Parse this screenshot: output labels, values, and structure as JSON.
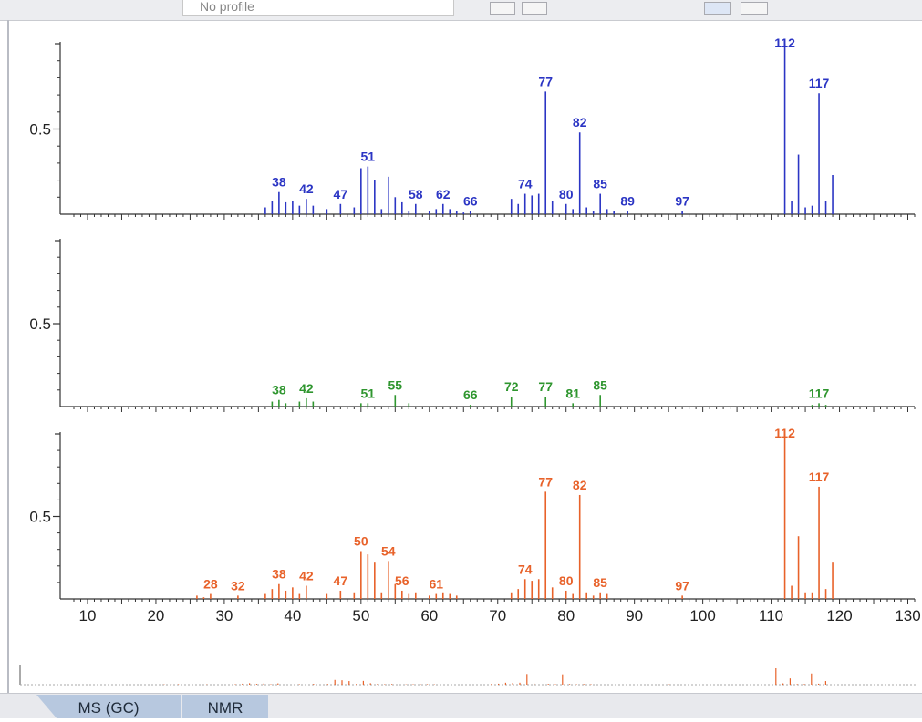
{
  "toolbar": {
    "profile_combo": "No profile"
  },
  "tabs": [
    {
      "label": "MS (GC)"
    },
    {
      "label": "NMR"
    }
  ],
  "colors": {
    "panel1": "#2b35c4",
    "panel2": "#2f962f",
    "panel3": "#e8622a",
    "axis": "#333333"
  },
  "chart_data": [
    {
      "type": "bar",
      "panel": 1,
      "color": "#2b35c4",
      "xlim": [
        6,
        131
      ],
      "ylim": [
        0,
        1
      ],
      "yticks": [
        {
          "value": 0.5,
          "label": "0.5"
        }
      ],
      "x": [
        36,
        37,
        38,
        39,
        40,
        41,
        42,
        43,
        45,
        47,
        49,
        50,
        51,
        52,
        53,
        54,
        55,
        56,
        57,
        58,
        60,
        61,
        62,
        63,
        64,
        65,
        66,
        72,
        73,
        74,
        75,
        76,
        77,
        78,
        80,
        81,
        82,
        83,
        84,
        85,
        86,
        87,
        89,
        97,
        112,
        113,
        114,
        115,
        116,
        117,
        118,
        119
      ],
      "values": [
        0.04,
        0.08,
        0.13,
        0.07,
        0.08,
        0.05,
        0.09,
        0.05,
        0.03,
        0.06,
        0.04,
        0.27,
        0.28,
        0.2,
        0.03,
        0.22,
        0.1,
        0.07,
        0.02,
        0.06,
        0.02,
        0.03,
        0.06,
        0.03,
        0.02,
        0.01,
        0.02,
        0.09,
        0.06,
        0.12,
        0.11,
        0.12,
        0.72,
        0.08,
        0.06,
        0.03,
        0.48,
        0.04,
        0.02,
        0.12,
        0.03,
        0.02,
        0.02,
        0.02,
        1.0,
        0.08,
        0.35,
        0.04,
        0.05,
        0.71,
        0.08,
        0.23
      ],
      "peak_labels": [
        {
          "x": 38,
          "text": "38"
        },
        {
          "x": 42,
          "text": "42"
        },
        {
          "x": 47,
          "text": "47"
        },
        {
          "x": 51,
          "text": "51"
        },
        {
          "x": 58,
          "text": "58"
        },
        {
          "x": 62,
          "text": "62"
        },
        {
          "x": 66,
          "text": "66"
        },
        {
          "x": 74,
          "text": "74"
        },
        {
          "x": 77,
          "text": "77"
        },
        {
          "x": 80,
          "text": "80"
        },
        {
          "x": 82,
          "text": "82"
        },
        {
          "x": 85,
          "text": "85"
        },
        {
          "x": 89,
          "text": "89"
        },
        {
          "x": 97,
          "text": "97"
        },
        {
          "x": 112,
          "text": "112"
        },
        {
          "x": 117,
          "text": "117"
        }
      ]
    },
    {
      "type": "bar",
      "panel": 2,
      "color": "#2f962f",
      "xlim": [
        6,
        131
      ],
      "ylim": [
        0,
        1
      ],
      "yticks": [
        {
          "value": 0.5,
          "label": "0.5"
        }
      ],
      "x": [
        37,
        38,
        39,
        41,
        42,
        43,
        50,
        51,
        55,
        57,
        66,
        72,
        77,
        81,
        85,
        116,
        117,
        118
      ],
      "values": [
        0.03,
        0.04,
        0.02,
        0.03,
        0.05,
        0.03,
        0.02,
        0.02,
        0.07,
        0.02,
        0.01,
        0.06,
        0.06,
        0.02,
        0.07,
        0.01,
        0.02,
        0.01
      ],
      "peak_labels": [
        {
          "x": 38,
          "text": "38"
        },
        {
          "x": 42,
          "text": "42"
        },
        {
          "x": 51,
          "text": "51"
        },
        {
          "x": 55,
          "text": "55"
        },
        {
          "x": 66,
          "text": "66"
        },
        {
          "x": 72,
          "text": "72"
        },
        {
          "x": 77,
          "text": "77"
        },
        {
          "x": 81,
          "text": "81"
        },
        {
          "x": 85,
          "text": "85"
        },
        {
          "x": 117,
          "text": "117"
        }
      ]
    },
    {
      "type": "bar",
      "panel": 3,
      "color": "#e8622a",
      "xlim": [
        6,
        131
      ],
      "ylim": [
        0,
        1
      ],
      "yticks": [
        {
          "value": 0.5,
          "label": "0.5"
        }
      ],
      "xticks": [
        10,
        20,
        30,
        40,
        50,
        60,
        70,
        80,
        90,
        100,
        110,
        120,
        130
      ],
      "x": [
        26,
        27,
        28,
        32,
        36,
        37,
        38,
        39,
        40,
        41,
        42,
        45,
        47,
        49,
        50,
        51,
        52,
        53,
        54,
        55,
        56,
        57,
        58,
        60,
        61,
        62,
        63,
        64,
        72,
        73,
        74,
        75,
        76,
        77,
        78,
        80,
        81,
        82,
        83,
        84,
        85,
        86,
        97,
        112,
        113,
        114,
        115,
        116,
        117,
        118,
        119
      ],
      "values": [
        0.02,
        0.01,
        0.03,
        0.02,
        0.03,
        0.06,
        0.09,
        0.05,
        0.07,
        0.03,
        0.08,
        0.03,
        0.05,
        0.04,
        0.29,
        0.27,
        0.22,
        0.04,
        0.23,
        0.09,
        0.05,
        0.03,
        0.04,
        0.02,
        0.03,
        0.04,
        0.03,
        0.02,
        0.04,
        0.06,
        0.12,
        0.11,
        0.12,
        0.65,
        0.07,
        0.05,
        0.03,
        0.63,
        0.04,
        0.02,
        0.04,
        0.03,
        0.02,
        1.0,
        0.08,
        0.38,
        0.04,
        0.04,
        0.68,
        0.06,
        0.22
      ],
      "peak_labels": [
        {
          "x": 28,
          "text": "28"
        },
        {
          "x": 32,
          "text": "32"
        },
        {
          "x": 38,
          "text": "38"
        },
        {
          "x": 42,
          "text": "42"
        },
        {
          "x": 47,
          "text": "47"
        },
        {
          "x": 50,
          "text": "50"
        },
        {
          "x": 54,
          "text": "54"
        },
        {
          "x": 56,
          "text": "56"
        },
        {
          "x": 61,
          "text": "61"
        },
        {
          "x": 74,
          "text": "74"
        },
        {
          "x": 77,
          "text": "77"
        },
        {
          "x": 80,
          "text": "80"
        },
        {
          "x": 82,
          "text": "82"
        },
        {
          "x": 85,
          "text": "85"
        },
        {
          "x": 97,
          "text": "97"
        },
        {
          "x": 112,
          "text": "112"
        },
        {
          "x": 117,
          "text": "117"
        }
      ]
    }
  ]
}
